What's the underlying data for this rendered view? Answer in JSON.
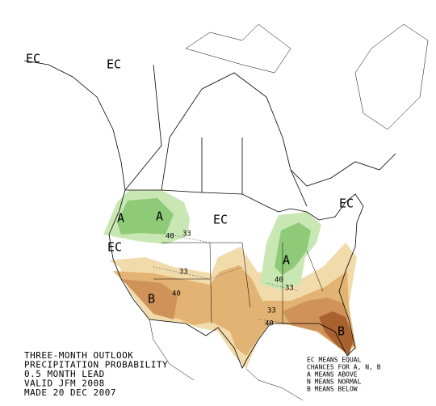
{
  "title_lines": [
    "THREE-MONTH OUTLOOK",
    "PRECIPITATION PROBABILITY",
    "0.5 MONTH LEAD",
    "VALID JFM 2008",
    "MADE 20 DEC 2007"
  ],
  "legend_lines": [
    "EC MEANS EQUAL",
    "CHANCES FOR A, N, B",
    "A MEANS ABOVE",
    "N MEANS NORMAL",
    "B MEANS BELOW"
  ],
  "region_labels": [
    "EC",
    "EC",
    "EC",
    "EC",
    "EC",
    "A",
    "A",
    "A",
    "B",
    "B"
  ],
  "contour_labels": [
    40,
    33,
    33,
    40,
    33,
    40,
    33,
    40
  ]
}
